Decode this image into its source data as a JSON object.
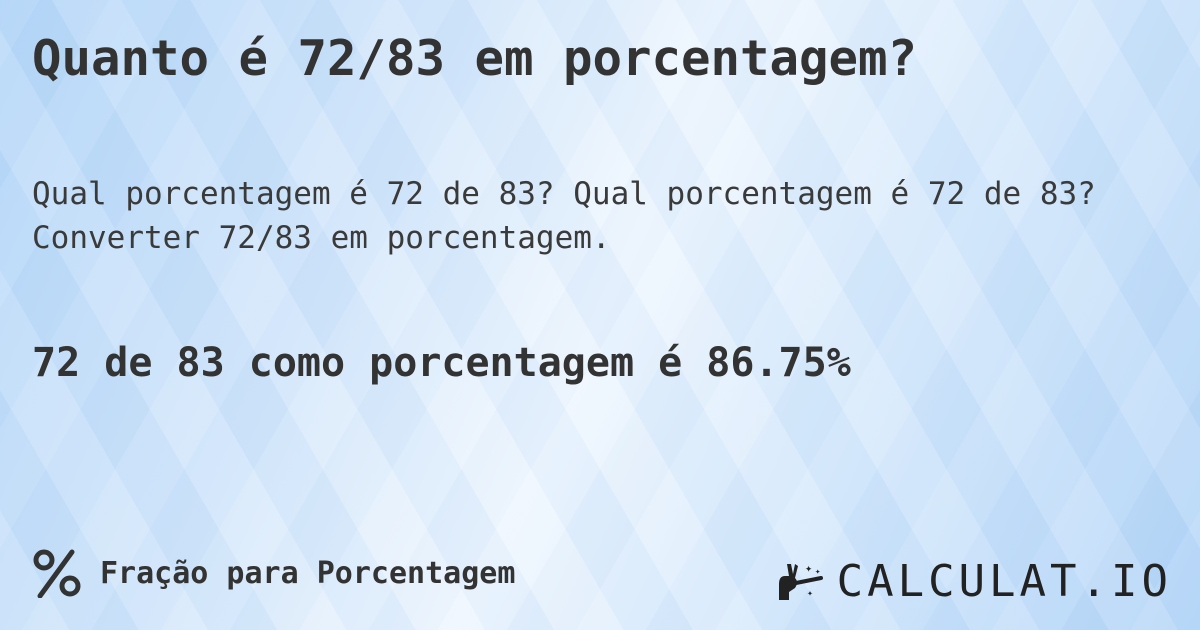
{
  "title": "Quanto é 72/83 em porcentagem?",
  "question_line1": "Qual porcentagem é 72 de 83? Qual porcentagem é 72 de 83?",
  "question_line2": "Converter 72/83 em porcentagem.",
  "answer": "72 de 83 como porcentagem é 86.75%",
  "footer": {
    "icon": "percent-icon",
    "label": "Fração para Porcentagem"
  },
  "logo": {
    "icon": "magic-hand-wand-icon",
    "text": "CALCULAT.IO"
  }
}
